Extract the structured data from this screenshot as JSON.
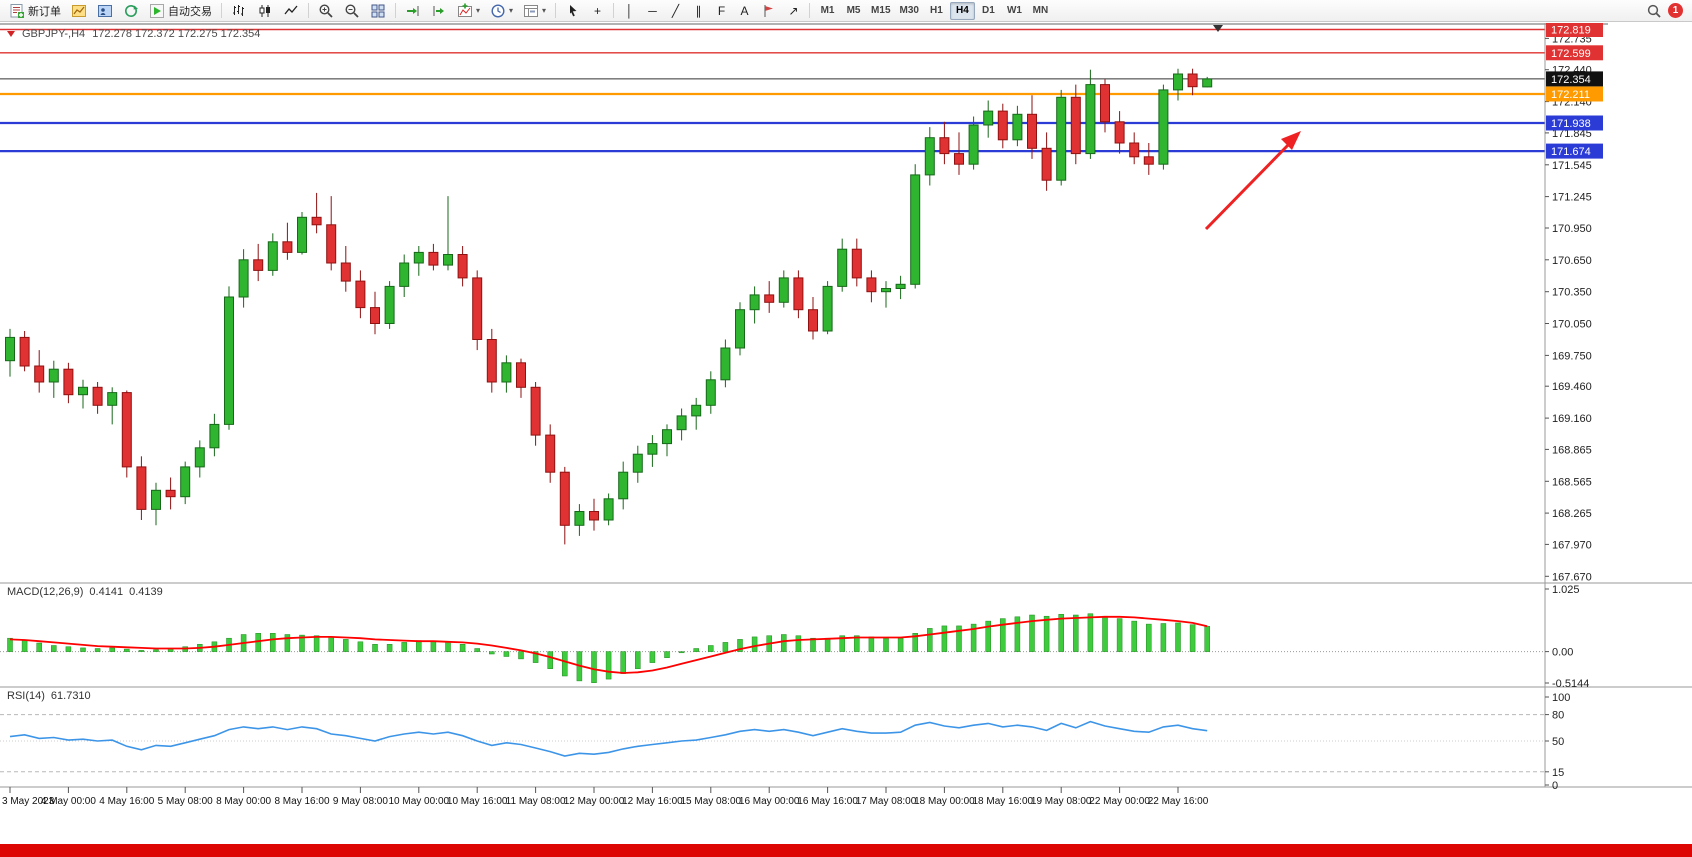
{
  "toolbar": {
    "new_order_label": "新订单",
    "auto_trading_label": "自动交易",
    "timeframes": [
      "M1",
      "M5",
      "M15",
      "M30",
      "H1",
      "H4",
      "D1",
      "W1",
      "MN"
    ],
    "active_timeframe": "H4",
    "notification_count": "1",
    "tool_glyphs": {
      "caret": "▾",
      "crosshair": "+",
      "vertical_line": "│",
      "horizontal_line": "─",
      "trend_line": "╱",
      "channel": "∥",
      "fibonacci": "F",
      "text": "A",
      "arrows": "↗"
    }
  },
  "chart": {
    "symbol_line": "GBPJPY-,H4",
    "ohlc_line": "172.278 172.372 172.275 172.354",
    "current_price": "172.354",
    "colors": {
      "bull": "#2fb52f",
      "bear": "#e03232",
      "macd_hist": "#3ecb3e",
      "macd_signal": "#ff0000",
      "rsi_line": "#3d95e8",
      "level_red": "#e03232",
      "level_orange": "#ff9b00",
      "level_blue": "#2b3cd6",
      "tag_current_bg": "#111111",
      "arrow": "#ee2222"
    },
    "levels": [
      {
        "price": 172.819,
        "label": "172.819",
        "type": "resistance",
        "color": "#e03232"
      },
      {
        "price": 172.599,
        "label": "172.599",
        "type": "resistance",
        "color": "#e03232"
      },
      {
        "price": 172.211,
        "label": "172.211",
        "type": "pivot",
        "color": "#ff9b00"
      },
      {
        "price": 171.938,
        "label": "171.938",
        "type": "support",
        "color": "#2b3cd6"
      },
      {
        "price": 171.674,
        "label": "171.674",
        "type": "support",
        "color": "#2b3cd6"
      }
    ],
    "price_scale": [
      "172.735",
      "172.440",
      "172.140",
      "171.845",
      "171.545",
      "171.245",
      "170.950",
      "170.650",
      "170.350",
      "170.050",
      "169.750",
      "169.460",
      "169.160",
      "168.865",
      "168.565",
      "168.265",
      "167.970",
      "167.670"
    ],
    "annotations": [
      {
        "type": "arrow",
        "direction": "up-right",
        "near_price": 171.9,
        "color": "#ee2222"
      }
    ]
  },
  "indicators": {
    "macd": {
      "name": "MACD(12,26,9)",
      "value_main": "0.4141",
      "value_signal": "0.4139",
      "scale": [
        "1.025",
        "0.00",
        "-0.5144"
      ],
      "scale_values": [
        1.025,
        0,
        -0.5144
      ]
    },
    "rsi": {
      "name": "RSI(14)",
      "value": "61.7310",
      "scale": [
        "100",
        "80",
        "50",
        "15",
        "0"
      ],
      "scale_values": [
        100,
        80,
        50,
        15,
        0
      ],
      "level_lines": [
        80,
        50,
        15
      ]
    }
  },
  "chart_data": [
    {
      "type": "candlestick",
      "symbol": "GBPJPY",
      "timeframe": "H4",
      "ylim": [
        167.67,
        172.88
      ],
      "hlines": [
        172.819,
        172.599,
        172.354,
        172.211,
        171.938,
        171.674
      ],
      "label_step": 4,
      "x_labels": [
        "3 May 2023",
        "4 May 00:00",
        "4 May 16:00",
        "5 May 08:00",
        "8 May 00:00",
        "8 May 16:00",
        "9 May 08:00",
        "10 May 00:00",
        "10 May 16:00",
        "11 May 08:00",
        "12 May 00:00",
        "12 May 16:00",
        "15 May 08:00",
        "16 May 00:00",
        "16 May 16:00",
        "17 May 08:00",
        "18 May 00:00",
        "18 May 16:00",
        "19 May 08:00",
        "22 May 00:00",
        "22 May 16:00"
      ],
      "ohlc": [
        [
          169.7,
          170.0,
          169.55,
          169.92
        ],
        [
          169.92,
          169.98,
          169.6,
          169.65
        ],
        [
          169.65,
          169.8,
          169.4,
          169.5
        ],
        [
          169.5,
          169.7,
          169.35,
          169.62
        ],
        [
          169.62,
          169.68,
          169.3,
          169.38
        ],
        [
          169.38,
          169.52,
          169.25,
          169.45
        ],
        [
          169.45,
          169.5,
          169.2,
          169.28
        ],
        [
          169.28,
          169.45,
          169.1,
          169.4
        ],
        [
          169.4,
          169.42,
          168.6,
          168.7
        ],
        [
          168.7,
          168.8,
          168.2,
          168.3
        ],
        [
          168.3,
          168.55,
          168.15,
          168.48
        ],
        [
          168.48,
          168.6,
          168.3,
          168.42
        ],
        [
          168.42,
          168.75,
          168.35,
          168.7
        ],
        [
          168.7,
          168.95,
          168.6,
          168.88
        ],
        [
          168.88,
          169.2,
          168.8,
          169.1
        ],
        [
          169.1,
          170.4,
          169.05,
          170.3
        ],
        [
          170.3,
          170.75,
          170.2,
          170.65
        ],
        [
          170.65,
          170.8,
          170.45,
          170.55
        ],
        [
          170.55,
          170.9,
          170.5,
          170.82
        ],
        [
          170.82,
          171.0,
          170.65,
          170.72
        ],
        [
          170.72,
          171.1,
          170.7,
          171.05
        ],
        [
          171.05,
          171.28,
          170.9,
          170.98
        ],
        [
          170.98,
          171.25,
          170.55,
          170.62
        ],
        [
          170.62,
          170.78,
          170.35,
          170.45
        ],
        [
          170.45,
          170.55,
          170.1,
          170.2
        ],
        [
          170.2,
          170.35,
          169.95,
          170.05
        ],
        [
          170.05,
          170.45,
          170.0,
          170.4
        ],
        [
          170.4,
          170.7,
          170.3,
          170.62
        ],
        [
          170.62,
          170.78,
          170.5,
          170.72
        ],
        [
          170.72,
          170.8,
          170.55,
          170.6
        ],
        [
          170.6,
          171.25,
          170.55,
          170.7
        ],
        [
          170.7,
          170.78,
          170.4,
          170.48
        ],
        [
          170.48,
          170.55,
          169.8,
          169.9
        ],
        [
          169.9,
          170.0,
          169.4,
          169.5
        ],
        [
          169.5,
          169.75,
          169.4,
          169.68
        ],
        [
          169.68,
          169.72,
          169.35,
          169.45
        ],
        [
          169.45,
          169.5,
          168.9,
          169.0
        ],
        [
          169.0,
          169.1,
          168.55,
          168.65
        ],
        [
          168.65,
          168.7,
          167.97,
          168.15
        ],
        [
          168.15,
          168.35,
          168.05,
          168.28
        ],
        [
          168.28,
          168.4,
          168.1,
          168.2
        ],
        [
          168.2,
          168.45,
          168.15,
          168.4
        ],
        [
          168.4,
          168.75,
          168.3,
          168.65
        ],
        [
          168.65,
          168.9,
          168.55,
          168.82
        ],
        [
          168.82,
          169.0,
          168.7,
          168.92
        ],
        [
          168.92,
          169.1,
          168.8,
          169.05
        ],
        [
          169.05,
          169.25,
          168.95,
          169.18
        ],
        [
          169.18,
          169.35,
          169.05,
          169.28
        ],
        [
          169.28,
          169.6,
          169.2,
          169.52
        ],
        [
          169.52,
          169.9,
          169.45,
          169.82
        ],
        [
          169.82,
          170.25,
          169.75,
          170.18
        ],
        [
          170.18,
          170.4,
          170.05,
          170.32
        ],
        [
          170.32,
          170.45,
          170.15,
          170.25
        ],
        [
          170.25,
          170.55,
          170.2,
          170.48
        ],
        [
          170.48,
          170.55,
          170.1,
          170.18
        ],
        [
          170.18,
          170.3,
          169.9,
          169.98
        ],
        [
          169.98,
          170.45,
          169.95,
          170.4
        ],
        [
          170.4,
          170.85,
          170.35,
          170.75
        ],
        [
          170.75,
          170.85,
          170.4,
          170.48
        ],
        [
          170.48,
          170.55,
          170.25,
          170.35
        ],
        [
          170.35,
          170.45,
          170.2,
          170.38
        ],
        [
          170.38,
          170.5,
          170.28,
          170.42
        ],
        [
          170.42,
          171.55,
          170.38,
          171.45
        ],
        [
          171.45,
          171.9,
          171.35,
          171.8
        ],
        [
          171.8,
          171.95,
          171.55,
          171.65
        ],
        [
          171.65,
          171.85,
          171.45,
          171.55
        ],
        [
          171.55,
          172.0,
          171.5,
          171.92
        ],
        [
          171.92,
          172.15,
          171.8,
          172.05
        ],
        [
          172.05,
          172.12,
          171.7,
          171.78
        ],
        [
          171.78,
          172.1,
          171.72,
          172.02
        ],
        [
          172.02,
          172.2,
          171.6,
          171.7
        ],
        [
          171.7,
          171.85,
          171.3,
          171.4
        ],
        [
          171.4,
          172.25,
          171.35,
          172.18
        ],
        [
          172.18,
          172.3,
          171.55,
          171.65
        ],
        [
          171.65,
          172.44,
          171.6,
          172.3
        ],
        [
          172.3,
          172.35,
          171.85,
          171.95
        ],
        [
          171.95,
          172.05,
          171.65,
          171.75
        ],
        [
          171.75,
          171.85,
          171.55,
          171.62
        ],
        [
          171.62,
          171.75,
          171.45,
          171.55
        ],
        [
          171.55,
          172.3,
          171.5,
          172.25
        ],
        [
          172.25,
          172.45,
          172.15,
          172.4
        ],
        [
          172.4,
          172.45,
          172.2,
          172.28
        ],
        [
          172.278,
          172.372,
          172.275,
          172.354
        ]
      ]
    },
    {
      "type": "bar",
      "name": "MACD(12,26,9)",
      "ylim": [
        -0.5144,
        1.025
      ],
      "values": [
        0.22,
        0.18,
        0.14,
        0.1,
        0.08,
        0.06,
        0.05,
        0.06,
        0.04,
        0.02,
        0.03,
        0.05,
        0.08,
        0.12,
        0.16,
        0.22,
        0.28,
        0.3,
        0.3,
        0.28,
        0.27,
        0.26,
        0.24,
        0.2,
        0.16,
        0.12,
        0.12,
        0.15,
        0.18,
        0.17,
        0.16,
        0.12,
        0.05,
        -0.04,
        -0.08,
        -0.12,
        -0.18,
        -0.28,
        -0.4,
        -0.48,
        -0.51,
        -0.45,
        -0.36,
        -0.28,
        -0.18,
        -0.1,
        -0.02,
        0.05,
        0.1,
        0.15,
        0.2,
        0.24,
        0.26,
        0.28,
        0.26,
        0.22,
        0.22,
        0.26,
        0.26,
        0.24,
        0.22,
        0.22,
        0.3,
        0.38,
        0.42,
        0.42,
        0.45,
        0.5,
        0.54,
        0.57,
        0.6,
        0.58,
        0.61,
        0.6,
        0.62,
        0.58,
        0.54,
        0.5,
        0.45,
        0.46,
        0.47,
        0.44,
        0.4141
      ],
      "signal_line": [
        0.2,
        0.19,
        0.17,
        0.15,
        0.13,
        0.11,
        0.09,
        0.08,
        0.07,
        0.06,
        0.05,
        0.05,
        0.05,
        0.06,
        0.08,
        0.11,
        0.14,
        0.17,
        0.2,
        0.22,
        0.23,
        0.24,
        0.24,
        0.23,
        0.22,
        0.2,
        0.19,
        0.18,
        0.17,
        0.17,
        0.16,
        0.15,
        0.13,
        0.1,
        0.06,
        0.02,
        -0.03,
        -0.09,
        -0.16,
        -0.23,
        -0.29,
        -0.33,
        -0.35,
        -0.34,
        -0.31,
        -0.26,
        -0.2,
        -0.14,
        -0.08,
        -0.02,
        0.04,
        0.09,
        0.13,
        0.17,
        0.19,
        0.2,
        0.21,
        0.22,
        0.23,
        0.23,
        0.23,
        0.23,
        0.25,
        0.28,
        0.31,
        0.34,
        0.37,
        0.41,
        0.44,
        0.47,
        0.5,
        0.52,
        0.54,
        0.55,
        0.56,
        0.57,
        0.57,
        0.56,
        0.54,
        0.52,
        0.5,
        0.47,
        0.4139
      ]
    },
    {
      "type": "line",
      "name": "RSI(14)",
      "ylim": [
        0,
        100
      ],
      "levels": [
        80,
        50,
        15
      ],
      "values": [
        55,
        57,
        53,
        54,
        51,
        52,
        50,
        51,
        44,
        40,
        45,
        44,
        48,
        52,
        56,
        63,
        66,
        64,
        66,
        63,
        66,
        64,
        58,
        56,
        53,
        50,
        55,
        58,
        60,
        58,
        60,
        56,
        50,
        45,
        48,
        46,
        42,
        38,
        33,
        36,
        35,
        37,
        41,
        44,
        46,
        48,
        50,
        51,
        54,
        57,
        61,
        63,
        61,
        63,
        60,
        56,
        60,
        64,
        61,
        59,
        59,
        60,
        68,
        71,
        67,
        65,
        68,
        70,
        66,
        68,
        66,
        62,
        70,
        65,
        72,
        67,
        64,
        61,
        60,
        66,
        68,
        64,
        61.73
      ]
    }
  ]
}
